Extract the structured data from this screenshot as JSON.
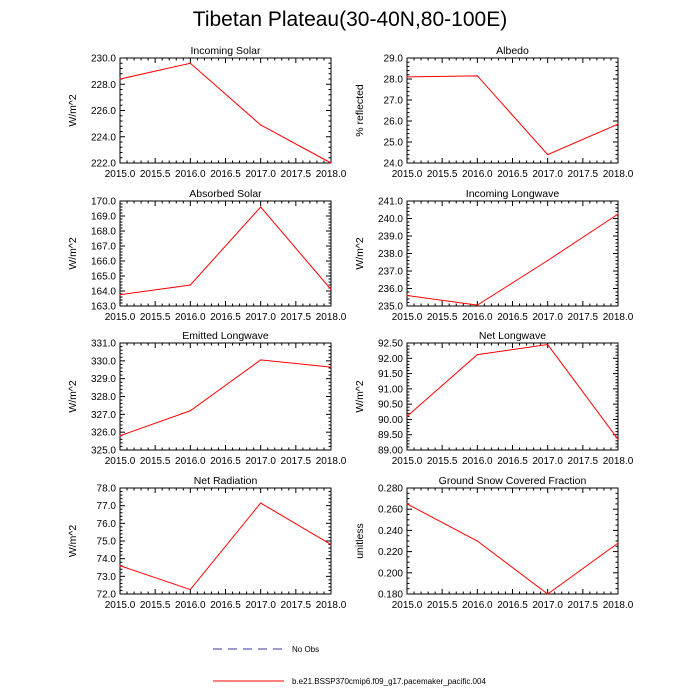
{
  "title": "Tibetan Plateau(30-40N,80-100E)",
  "colors": {
    "model_line": "#ff0000",
    "obs_line": "#3b3b9b",
    "axis": "#000000"
  },
  "legend": {
    "obs_label": "No Obs",
    "model_label": "b.e21.BSSP370cmip6.f09_g17.pacemaker_pacific.004"
  },
  "chart_data": [
    {
      "type": "line",
      "title": "Incoming Solar",
      "ylabel": "W/m^2",
      "x": [
        2015,
        2016,
        2017,
        2018
      ],
      "values": [
        228.4,
        229.6,
        224.9,
        222.0
      ],
      "xlim": [
        2015,
        2018
      ],
      "ylim": [
        222,
        230
      ],
      "xticks": [
        "2015.0",
        "2015.5",
        "2016.0",
        "2016.5",
        "2017.0",
        "2017.5",
        "2018.0"
      ],
      "yticks": [
        "222.0",
        "224.0",
        "226.0",
        "228.0",
        "230.0"
      ],
      "yminor": 5
    },
    {
      "type": "line",
      "title": "Albedo",
      "ylabel": "% reflected",
      "x": [
        2015,
        2016,
        2017,
        2018
      ],
      "values": [
        28.1,
        28.15,
        24.4,
        25.85
      ],
      "xlim": [
        2015,
        2018
      ],
      "ylim": [
        24,
        29
      ],
      "xticks": [
        "2015.0",
        "2015.5",
        "2016.0",
        "2016.5",
        "2017.0",
        "2017.5",
        "2018.0"
      ],
      "yticks": [
        "24.0",
        "25.0",
        "26.0",
        "27.0",
        "28.0",
        "29.0"
      ],
      "yminor": 5
    },
    {
      "type": "line",
      "title": "Absorbed Solar",
      "ylabel": "W/m^2",
      "x": [
        2015,
        2016,
        2017,
        2018
      ],
      "values": [
        163.75,
        164.4,
        169.6,
        164.1
      ],
      "xlim": [
        2015,
        2018
      ],
      "ylim": [
        163,
        170
      ],
      "xticks": [
        "2015.0",
        "2015.5",
        "2016.0",
        "2016.5",
        "2017.0",
        "2017.5",
        "2018.0"
      ],
      "yticks": [
        "163.0",
        "164.0",
        "165.0",
        "166.0",
        "167.0",
        "168.0",
        "169.0",
        "170.0"
      ],
      "yminor": 5
    },
    {
      "type": "line",
      "title": "Incoming Longwave",
      "ylabel": "W/m^2",
      "x": [
        2015,
        2016,
        2017,
        2018
      ],
      "values": [
        235.6,
        235.05,
        237.6,
        240.25
      ],
      "xlim": [
        2015,
        2018
      ],
      "ylim": [
        235,
        241
      ],
      "xticks": [
        "2015.0",
        "2015.5",
        "2016.0",
        "2016.5",
        "2017.0",
        "2017.5",
        "2018.0"
      ],
      "yticks": [
        "235.0",
        "236.0",
        "237.0",
        "238.0",
        "239.0",
        "240.0",
        "241.0"
      ],
      "yminor": 5
    },
    {
      "type": "line",
      "title": "Emitted Longwave",
      "ylabel": "W/m^2",
      "x": [
        2015,
        2016,
        2017,
        2018
      ],
      "values": [
        325.8,
        327.2,
        330.05,
        329.65
      ],
      "xlim": [
        2015,
        2018
      ],
      "ylim": [
        325,
        331
      ],
      "xticks": [
        "2015.0",
        "2015.5",
        "2016.0",
        "2016.5",
        "2017.0",
        "2017.5",
        "2018.0"
      ],
      "yticks": [
        "325.0",
        "326.0",
        "327.0",
        "328.0",
        "329.0",
        "330.0",
        "331.0"
      ],
      "yminor": 5
    },
    {
      "type": "line",
      "title": "Net Longwave",
      "ylabel": "W/m^2",
      "x": [
        2015,
        2016,
        2017,
        2018
      ],
      "values": [
        90.1,
        92.12,
        92.45,
        89.35
      ],
      "xlim": [
        2015,
        2018
      ],
      "ylim": [
        89,
        92.5
      ],
      "xticks": [
        "2015.0",
        "2015.5",
        "2016.0",
        "2016.5",
        "2017.0",
        "2017.5",
        "2018.0"
      ],
      "yticks": [
        "89.00",
        "89.50",
        "90.00",
        "90.50",
        "91.00",
        "91.50",
        "92.00",
        "92.50"
      ],
      "yminor": 5
    },
    {
      "type": "line",
      "title": "Net Radiation",
      "ylabel": "W/m^2",
      "x": [
        2015,
        2016,
        2017,
        2018
      ],
      "values": [
        73.6,
        72.25,
        77.15,
        74.8
      ],
      "xlim": [
        2015,
        2018
      ],
      "ylim": [
        72,
        78
      ],
      "xticks": [
        "2015.0",
        "2015.5",
        "2016.0",
        "2016.5",
        "2017.0",
        "2017.5",
        "2018.0"
      ],
      "yticks": [
        "72.0",
        "73.0",
        "74.0",
        "75.0",
        "76.0",
        "77.0",
        "78.0"
      ],
      "yminor": 5
    },
    {
      "type": "line",
      "title": "Ground Snow Covered Fraction",
      "ylabel": "unitless",
      "x": [
        2015,
        2016,
        2017,
        2018
      ],
      "values": [
        0.265,
        0.23,
        0.18,
        0.228
      ],
      "xlim": [
        2015,
        2018
      ],
      "ylim": [
        0.18,
        0.28
      ],
      "xticks": [
        "2015.0",
        "2015.5",
        "2016.0",
        "2016.5",
        "2017.0",
        "2017.5",
        "2018.0"
      ],
      "yticks": [
        "0.180",
        "0.200",
        "0.220",
        "0.240",
        "0.260",
        "0.280"
      ],
      "yminor": 4
    }
  ]
}
